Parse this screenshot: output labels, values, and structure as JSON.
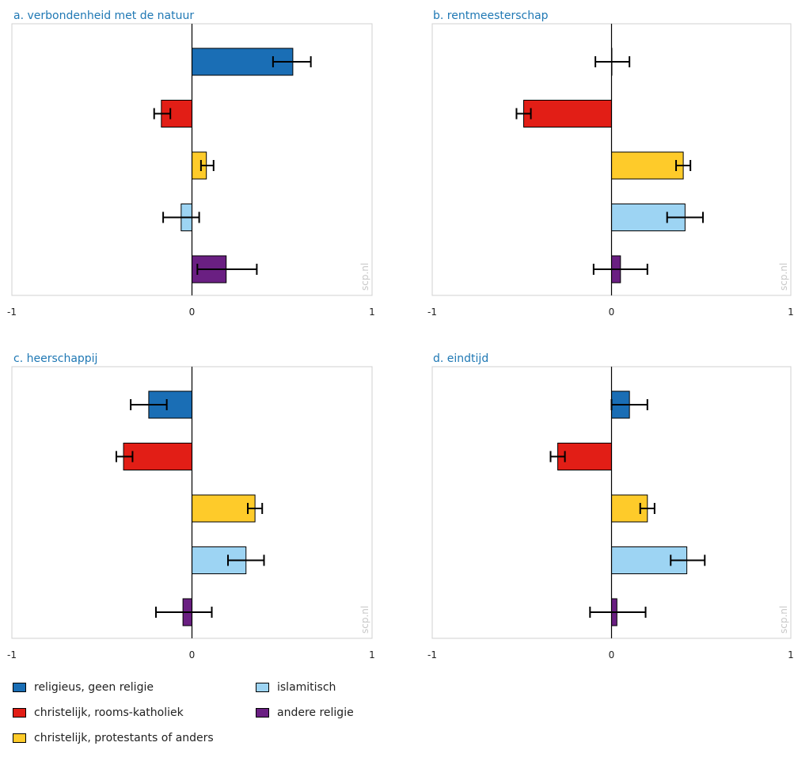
{
  "series": [
    {
      "name": "religieus, geen religie",
      "color": "#1a6eb5"
    },
    {
      "name": "christelijk, rooms-katholiek",
      "color": "#e21e16"
    },
    {
      "name": "christelijk, protestants of anders",
      "color": "#fecb2a"
    },
    {
      "name": "islamitisch",
      "color": "#9dd4f3"
    },
    {
      "name": "andere religie",
      "color": "#6a1f82"
    }
  ],
  "watermark": "scp.nl",
  "chart_data": [
    {
      "type": "bar",
      "orientation": "horizontal",
      "title": "a. verbondenheid met de natuur",
      "categories": [
        "religieus, geen religie",
        "christelijk, rooms-katholiek",
        "christelijk, protestants of anders",
        "islamitisch",
        "andere religie"
      ],
      "values": [
        0.56,
        -0.17,
        0.08,
        -0.06,
        0.19
      ],
      "error_low": [
        0.45,
        -0.21,
        0.05,
        -0.16,
        0.03
      ],
      "error_high": [
        0.66,
        -0.12,
        0.12,
        0.04,
        0.36
      ],
      "xlim": [
        -1,
        1
      ],
      "xticks": [
        "-1",
        "0",
        "1"
      ],
      "legend": "bottom"
    },
    {
      "type": "bar",
      "orientation": "horizontal",
      "title": "b. rentmeesterschap",
      "categories": [
        "religieus, geen religie",
        "christelijk, rooms-katholiek",
        "christelijk, protestants of anders",
        "islamitisch",
        "andere religie"
      ],
      "values": [
        0.0,
        -0.49,
        0.4,
        0.41,
        0.05
      ],
      "error_low": [
        -0.09,
        -0.53,
        0.36,
        0.31,
        -0.1
      ],
      "error_high": [
        0.1,
        -0.45,
        0.44,
        0.51,
        0.2
      ],
      "xlim": [
        -1,
        1
      ],
      "xticks": [
        "-1",
        "0",
        "1"
      ],
      "legend": "bottom"
    },
    {
      "type": "bar",
      "orientation": "horizontal",
      "title": "c. heerschappij",
      "categories": [
        "religieus, geen religie",
        "christelijk, rooms-katholiek",
        "christelijk, protestants of anders",
        "islamitisch",
        "andere religie"
      ],
      "values": [
        -0.24,
        -0.38,
        0.35,
        0.3,
        -0.05
      ],
      "error_low": [
        -0.34,
        -0.42,
        0.31,
        0.2,
        -0.2
      ],
      "error_high": [
        -0.14,
        -0.33,
        0.39,
        0.4,
        0.11
      ],
      "xlim": [
        -1,
        1
      ],
      "xticks": [
        "-1",
        "0",
        "1"
      ],
      "legend": "bottom"
    },
    {
      "type": "bar",
      "orientation": "horizontal",
      "title": "d. eindtijd",
      "categories": [
        "religieus, geen religie",
        "christelijk, rooms-katholiek",
        "christelijk, protestants of anders",
        "islamitisch",
        "andere religie"
      ],
      "values": [
        0.1,
        -0.3,
        0.2,
        0.42,
        0.03
      ],
      "error_low": [
        0.0,
        -0.34,
        0.16,
        0.33,
        -0.12
      ],
      "error_high": [
        0.2,
        -0.26,
        0.24,
        0.52,
        0.19
      ],
      "xlim": [
        -1,
        1
      ],
      "xticks": [
        "-1",
        "0",
        "1"
      ],
      "legend": "bottom"
    }
  ]
}
